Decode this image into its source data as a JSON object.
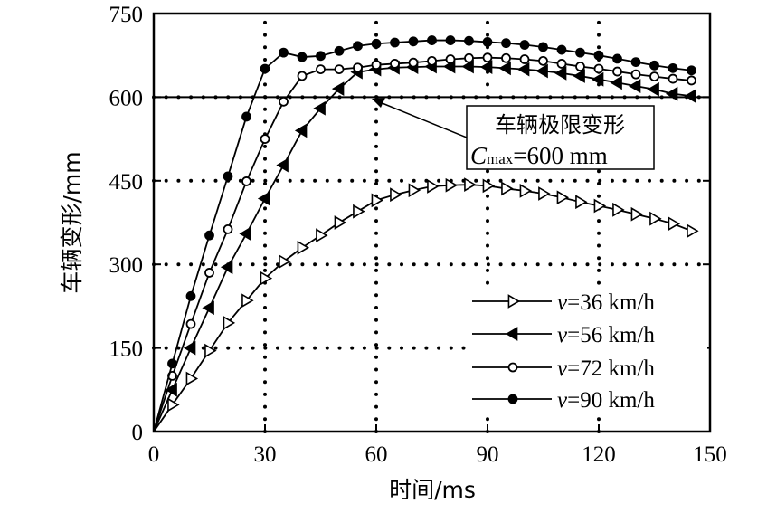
{
  "chart_data": {
    "type": "line",
    "xlabel": "时间/ms",
    "ylabel": "车辆变形/mm",
    "xlim": [
      0,
      150
    ],
    "ylim": [
      0,
      750
    ],
    "xticks": [
      0,
      30,
      60,
      90,
      120,
      150
    ],
    "yticks": [
      0,
      150,
      300,
      450,
      600,
      750
    ],
    "grid": true,
    "legend_position": "bottom-right",
    "x": [
      0,
      5,
      10,
      15,
      20,
      25,
      30,
      35,
      40,
      45,
      50,
      55,
      60,
      65,
      70,
      75,
      80,
      85,
      90,
      95,
      100,
      105,
      110,
      115,
      120,
      125,
      130,
      135,
      140,
      145
    ],
    "series": [
      {
        "name": "v=36 km/h",
        "v": "v",
        "rest": "=36 km/h",
        "marker": "triangle-right-open",
        "values": [
          0,
          48,
          95,
          145,
          195,
          235,
          275,
          305,
          330,
          352,
          375,
          395,
          415,
          425,
          433,
          440,
          442,
          443,
          441,
          436,
          432,
          427,
          420,
          412,
          405,
          398,
          390,
          382,
          373,
          360
        ]
      },
      {
        "name": "v=56 km/h",
        "v": "v",
        "rest": "=56 km/h",
        "marker": "triangle-left-filled",
        "values": [
          0,
          75,
          150,
          222,
          295,
          355,
          418,
          478,
          540,
          580,
          615,
          645,
          650,
          653,
          654,
          655,
          655,
          655,
          654,
          652,
          650,
          647,
          643,
          638,
          632,
          626,
          620,
          614,
          606,
          602
        ]
      },
      {
        "name": "v=72 km/h",
        "v": "v",
        "rest": "=72 km/h",
        "marker": "circle-open",
        "values": [
          0,
          100,
          193,
          285,
          363,
          449,
          525,
          592,
          638,
          650,
          650,
          653,
          658,
          660,
          662,
          665,
          668,
          670,
          671,
          670,
          668,
          665,
          660,
          655,
          651,
          646,
          641,
          637,
          633,
          630
        ]
      },
      {
        "name": "v=90 km/h",
        "v": "v",
        "rest": "=90 km/h",
        "marker": "circle-filled",
        "values": [
          0,
          122,
          243,
          352,
          458,
          565,
          651,
          680,
          672,
          674,
          683,
          692,
          696,
          698,
          700,
          702,
          702,
          701,
          699,
          697,
          694,
          690,
          685,
          680,
          675,
          669,
          663,
          657,
          652,
          648
        ]
      }
    ],
    "reference_line": {
      "y": 600
    },
    "annotation": {
      "line1": "车辆极限变形",
      "c": "C",
      "sub": "max",
      "rest": "=600 mm",
      "points_to": [
        60,
        600
      ]
    }
  }
}
